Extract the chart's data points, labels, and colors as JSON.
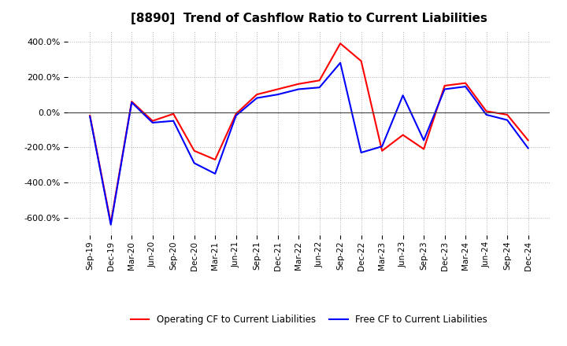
{
  "title": "[8890]  Trend of Cashflow Ratio to Current Liabilities",
  "x_labels": [
    "Sep-19",
    "Dec-19",
    "Mar-20",
    "Jun-20",
    "Sep-20",
    "Dec-20",
    "Mar-21",
    "Jun-21",
    "Sep-21",
    "Dec-21",
    "Mar-22",
    "Jun-22",
    "Sep-22",
    "Dec-22",
    "Mar-23",
    "Jun-23",
    "Sep-23",
    "Dec-23",
    "Mar-24",
    "Jun-24",
    "Sep-24",
    "Dec-24"
  ],
  "operating_cf": [
    -20,
    -630,
    60,
    -50,
    -10,
    -220,
    -270,
    -10,
    100,
    130,
    160,
    180,
    390,
    290,
    -220,
    -130,
    -210,
    150,
    165,
    5,
    -15,
    -160
  ],
  "free_cf": [
    -25,
    -640,
    55,
    -60,
    -50,
    -290,
    -350,
    -20,
    80,
    100,
    130,
    140,
    280,
    -230,
    -195,
    95,
    -160,
    130,
    145,
    -15,
    -45,
    -205
  ],
  "operating_color": "#ff0000",
  "free_color": "#0000ff",
  "ylim": [
    -700,
    460
  ],
  "yticks": [
    -600,
    -400,
    -200,
    0,
    200,
    400
  ],
  "background_color": "#ffffff",
  "grid_color": "#b0b0b0",
  "title_fontsize": 11,
  "legend_labels": [
    "Operating CF to Current Liabilities",
    "Free CF to Current Liabilities"
  ]
}
